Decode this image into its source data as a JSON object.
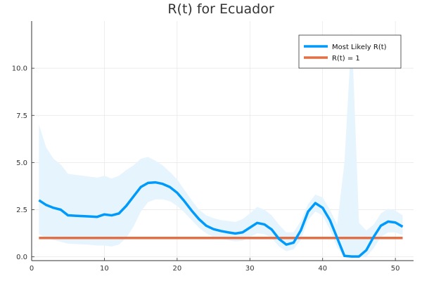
{
  "chart_data": {
    "type": "line",
    "title": "R(t) for Ecuador",
    "xlabel": "",
    "ylabel": "",
    "xlim": [
      0,
      52.5
    ],
    "ylim": [
      -0.2,
      12.5
    ],
    "x_ticks": [
      0,
      10,
      20,
      30,
      40,
      50
    ],
    "x_tick_labels": [
      "0",
      "10",
      "20",
      "30",
      "40",
      "50"
    ],
    "y_ticks": [
      0,
      2.5,
      5,
      7.5,
      10
    ],
    "y_tick_labels": [
      "0.0",
      "2.5",
      "5.0",
      "7.5",
      "10.0"
    ],
    "grid": true,
    "legend_position": "top-right",
    "x": [
      1,
      2,
      3,
      4,
      5,
      6,
      7,
      8,
      9,
      10,
      11,
      12,
      13,
      14,
      15,
      16,
      17,
      18,
      19,
      20,
      21,
      22,
      23,
      24,
      25,
      26,
      27,
      28,
      29,
      30,
      31,
      32,
      33,
      34,
      35,
      36,
      37,
      38,
      39,
      40,
      41,
      42,
      43,
      44,
      45,
      46,
      47,
      48,
      49,
      50,
      51
    ],
    "series": [
      {
        "name": "Most Likely R(t)",
        "color": "#009AFA",
        "values": [
          3.0,
          2.75,
          2.6,
          2.5,
          2.2,
          2.18,
          2.16,
          2.14,
          2.12,
          2.25,
          2.2,
          2.3,
          2.7,
          3.2,
          3.7,
          3.92,
          3.95,
          3.87,
          3.7,
          3.4,
          2.95,
          2.45,
          2.0,
          1.65,
          1.47,
          1.37,
          1.3,
          1.24,
          1.3,
          1.55,
          1.8,
          1.72,
          1.45,
          0.95,
          0.65,
          0.75,
          1.4,
          2.4,
          2.85,
          2.6,
          1.95,
          1.0,
          0.05,
          0.02,
          0.02,
          0.35,
          1.05,
          1.65,
          1.87,
          1.82,
          1.6
        ],
        "band_upper": [
          7.0,
          5.8,
          5.2,
          4.9,
          4.4,
          4.35,
          4.3,
          4.25,
          4.2,
          4.3,
          4.15,
          4.3,
          4.6,
          4.85,
          5.2,
          5.3,
          5.1,
          4.85,
          4.5,
          4.1,
          3.55,
          3.0,
          2.5,
          2.2,
          2.05,
          1.95,
          1.9,
          1.85,
          2.0,
          2.3,
          2.65,
          2.5,
          2.2,
          1.7,
          1.3,
          1.3,
          1.9,
          2.8,
          3.3,
          3.15,
          2.5,
          1.7,
          5.0,
          12.0,
          1.8,
          1.4,
          1.7,
          2.3,
          2.55,
          2.45,
          2.2
        ],
        "band_lower": [
          1.2,
          1.0,
          0.9,
          0.8,
          0.7,
          0.68,
          0.66,
          0.64,
          0.6,
          0.6,
          0.55,
          0.65,
          1.0,
          1.6,
          2.4,
          2.9,
          3.05,
          3.05,
          2.95,
          2.7,
          2.35,
          1.95,
          1.55,
          1.25,
          1.05,
          0.95,
          0.88,
          0.82,
          0.85,
          1.05,
          1.25,
          1.2,
          1.0,
          0.55,
          0.3,
          0.4,
          0.9,
          1.95,
          2.4,
          2.2,
          1.45,
          0.5,
          0.0,
          0.0,
          0.0,
          0.0,
          0.45,
          1.05,
          1.3,
          1.3,
          1.15
        ],
        "band_color": "#E6F4FE"
      },
      {
        "name": "R(t) = 1",
        "color": "#E26F46",
        "values": [
          1,
          1,
          1,
          1,
          1,
          1,
          1,
          1,
          1,
          1,
          1,
          1,
          1,
          1,
          1,
          1,
          1,
          1,
          1,
          1,
          1,
          1,
          1,
          1,
          1,
          1,
          1,
          1,
          1,
          1,
          1,
          1,
          1,
          1,
          1,
          1,
          1,
          1,
          1,
          1,
          1,
          1,
          1,
          1,
          1,
          1,
          1,
          1,
          1,
          1,
          1
        ]
      }
    ]
  }
}
